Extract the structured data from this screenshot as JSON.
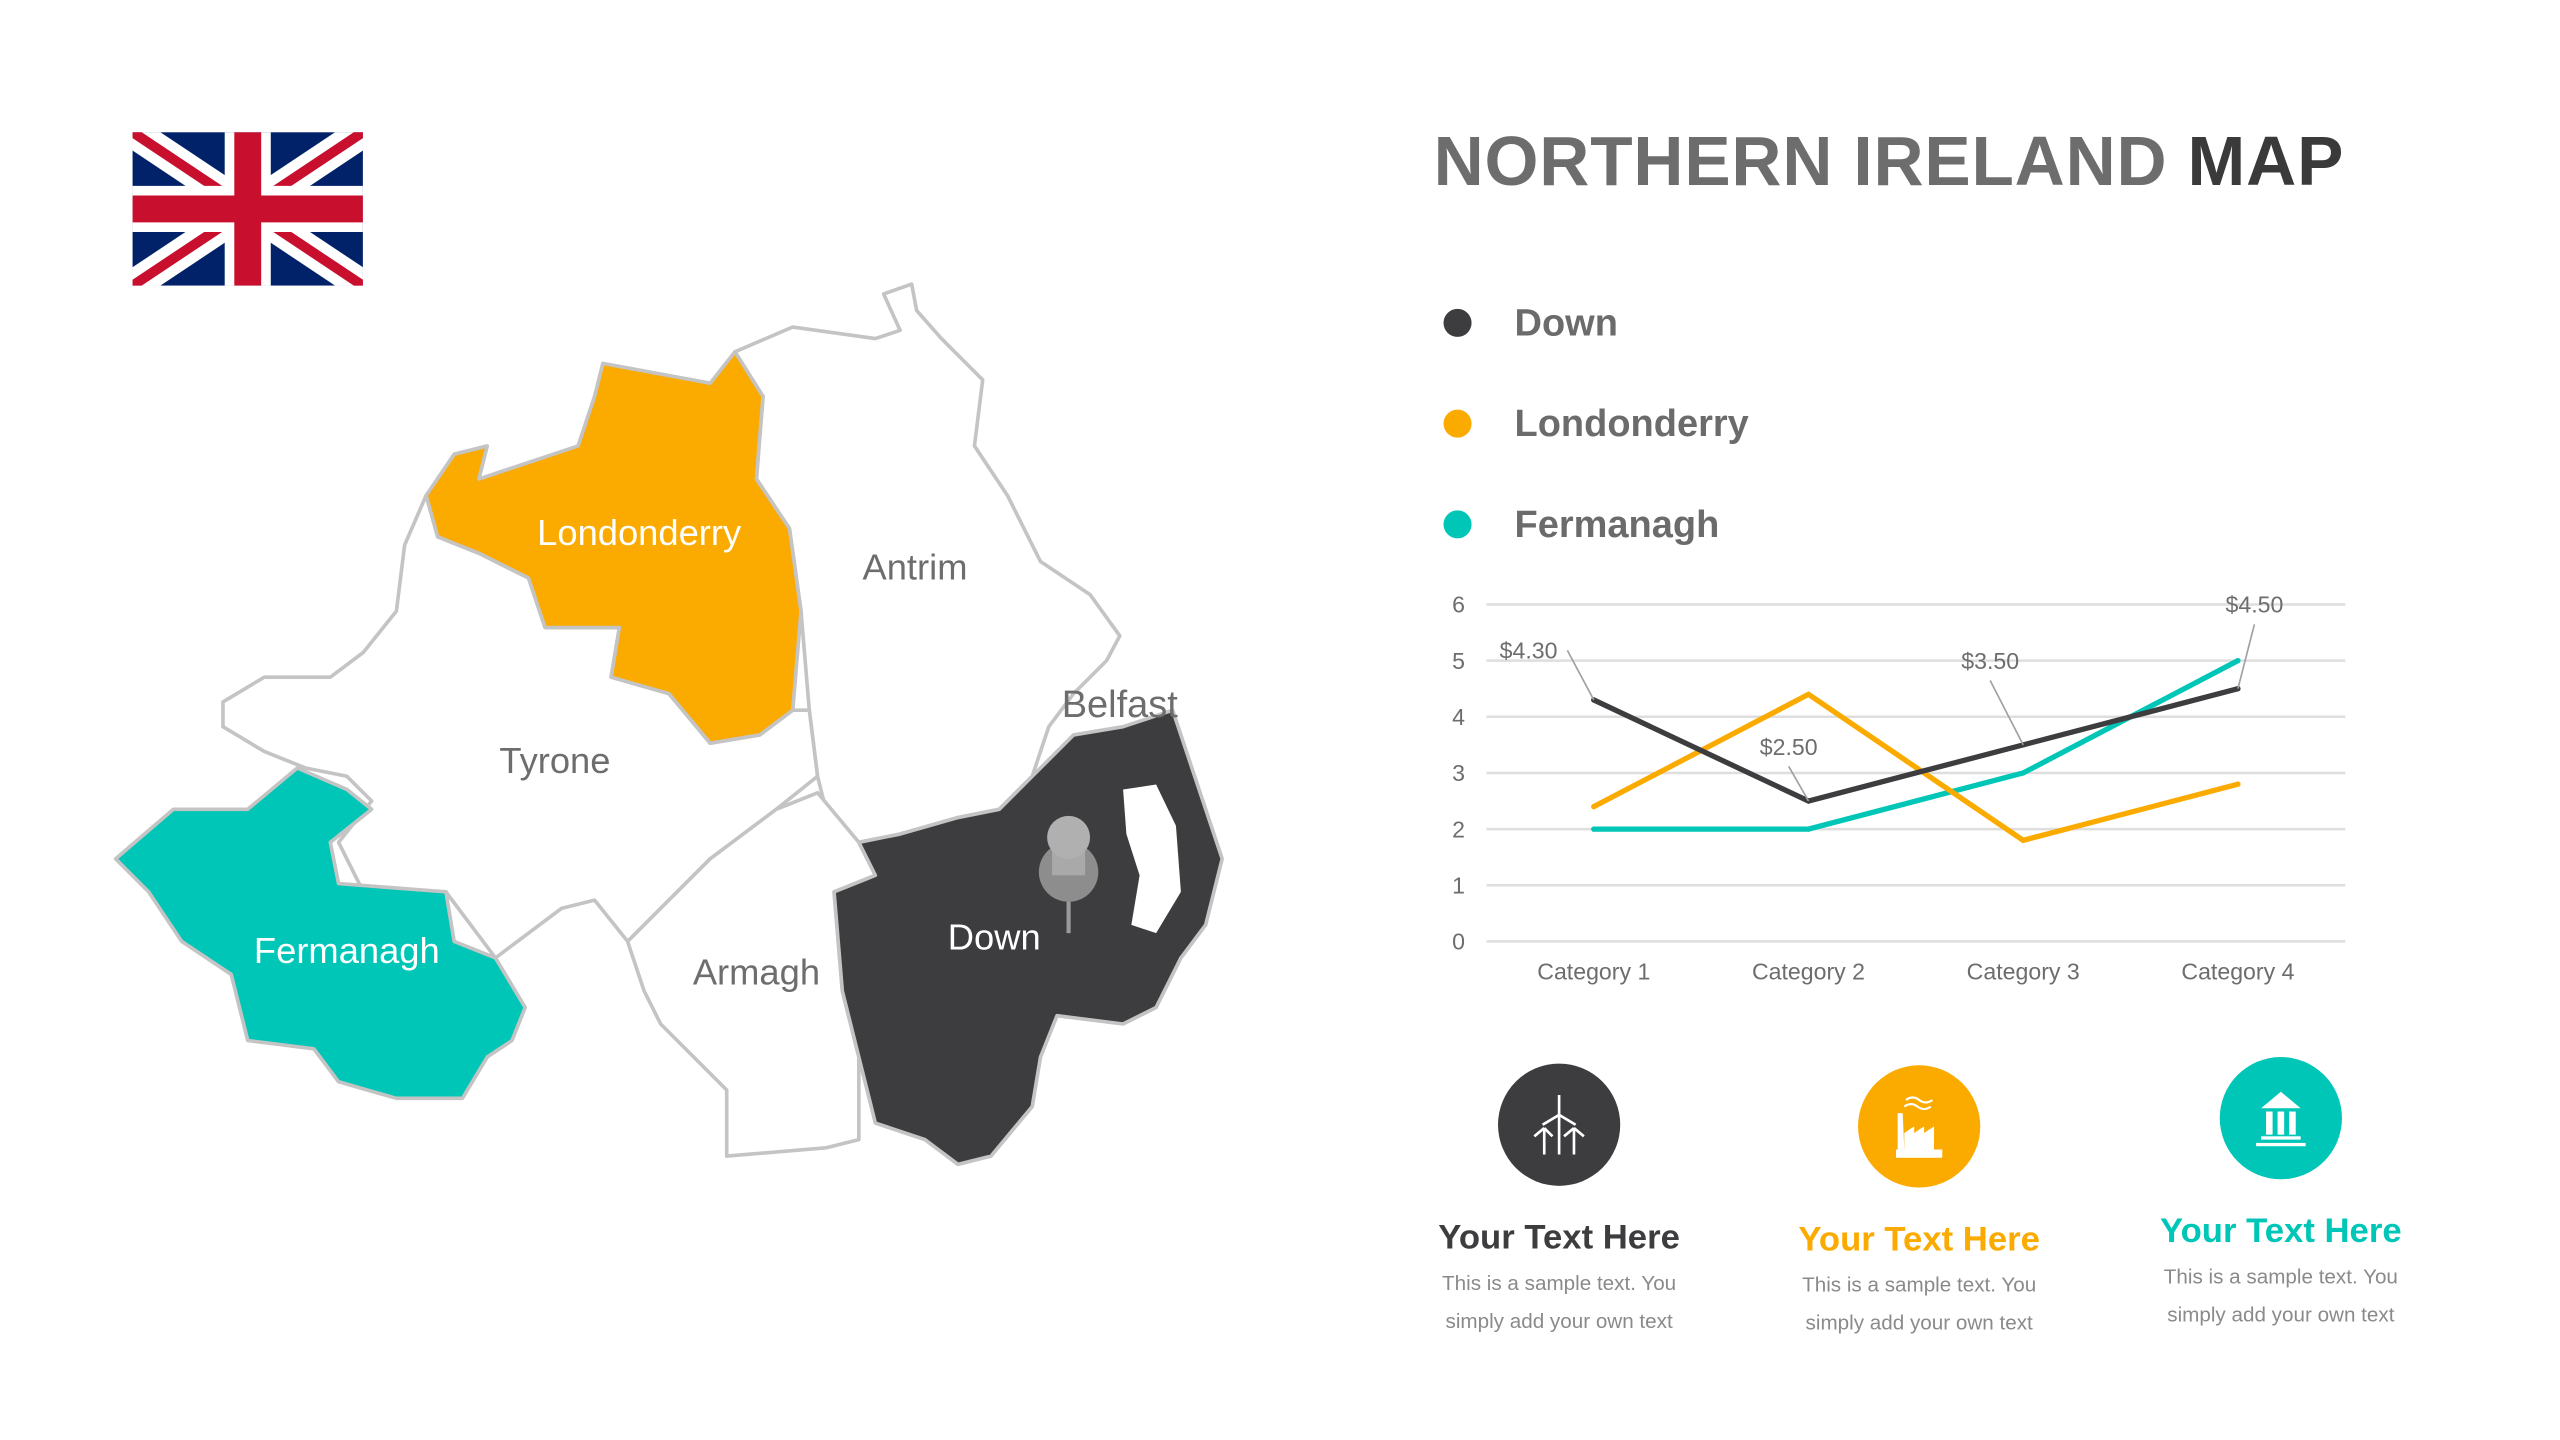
{
  "title": {
    "part1": "NORTHERN IRELAND",
    "part2": "MAP"
  },
  "colors": {
    "down": "#3d3d3f",
    "londonderry": "#fbab00",
    "fermanagh": "#00c6b7",
    "text_gray": "#6d6d6d"
  },
  "flag": {
    "icon": "union-jack-flag"
  },
  "map": {
    "counties": [
      {
        "name": "Londonderry",
        "color": "#fbab00"
      },
      {
        "name": "Antrim",
        "color": "#ffffff"
      },
      {
        "name": "Tyrone",
        "color": "#ffffff"
      },
      {
        "name": "Fermanagh",
        "color": "#00c6b7"
      },
      {
        "name": "Armagh",
        "color": "#ffffff"
      },
      {
        "name": "Down",
        "color": "#3d3d3f"
      }
    ],
    "city_label": "Belfast",
    "pin_icon": "pushpin-icon"
  },
  "legend": [
    {
      "label": "Down",
      "color": "#3d3d3f"
    },
    {
      "label": "Londonderry",
      "color": "#fbab00"
    },
    {
      "label": "Fermanagh",
      "color": "#00c6b7"
    }
  ],
  "chart_data": {
    "type": "line",
    "categories": [
      "Category 1",
      "Category 2",
      "Category 3",
      "Category 4"
    ],
    "series": [
      {
        "name": "Down",
        "color": "#3d3d3f",
        "values": [
          4.3,
          2.5,
          3.5,
          4.5
        ],
        "data_labels": [
          "$4.30",
          "$2.50",
          "$3.50",
          "$4.50"
        ]
      },
      {
        "name": "Londonderry",
        "color": "#fbab00",
        "values": [
          2.4,
          4.4,
          1.8,
          2.8
        ]
      },
      {
        "name": "Fermanagh",
        "color": "#00c6b7",
        "values": [
          2.0,
          2.0,
          3.0,
          5.0
        ]
      }
    ],
    "ylim": [
      0,
      6
    ],
    "yticks": [
      "0",
      "1",
      "2",
      "3",
      "4",
      "5",
      "6"
    ],
    "grid": true
  },
  "cards": [
    {
      "icon": "wind-turbine-icon",
      "title": "Your Text Here",
      "line1": "This is a sample text. You",
      "line2": "simply add your own text",
      "color": "#3d3d3f"
    },
    {
      "icon": "factory-icon",
      "title": "Your Text Here",
      "line1": "This is a sample text. You",
      "line2": "simply add your own text",
      "color": "#fbab00"
    },
    {
      "icon": "bank-building-icon",
      "title": "Your Text Here",
      "line1": "This is a sample text. You",
      "line2": "simply add your own text",
      "color": "#00c6b7"
    }
  ]
}
